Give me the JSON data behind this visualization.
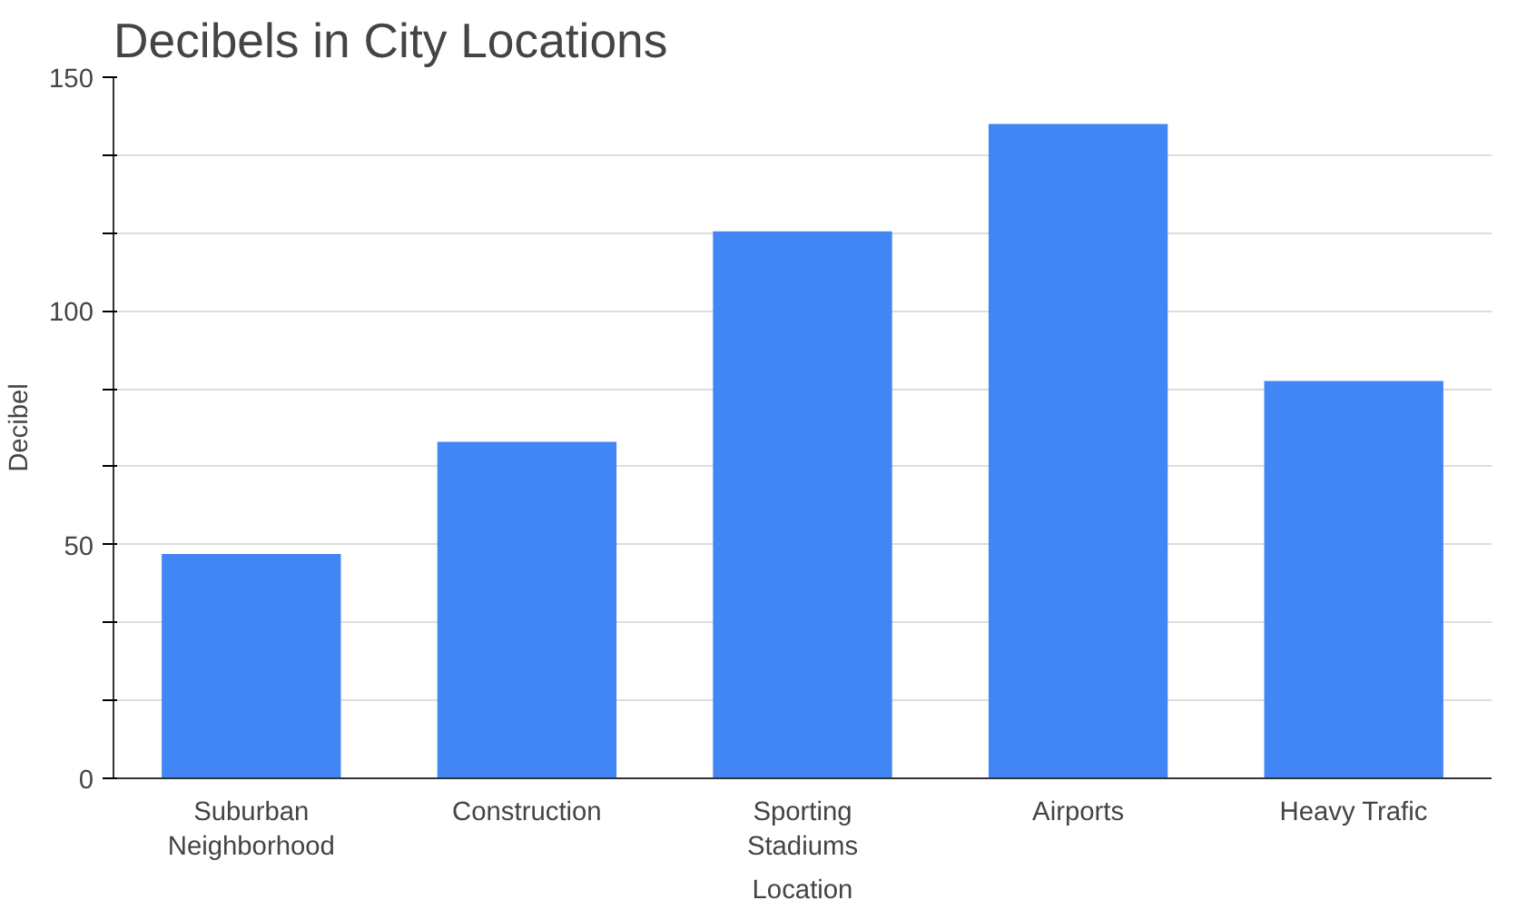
{
  "chart_data": {
    "type": "bar",
    "title": "Decibels in City Locations",
    "xlabel": "Location",
    "ylabel": "Decibel",
    "categories": [
      "Suburban\nNeighborhood",
      "Construction",
      "Sporting\nStadiums",
      "Airports",
      "Heavy Trafic"
    ],
    "values": [
      48,
      72,
      117,
      140,
      85
    ],
    "color": "#4285f4",
    "ylim": [
      0,
      150
    ],
    "yticks": [
      0,
      {
        "value": 16.67,
        "label": null
      },
      {
        "value": 33.33,
        "label": null
      },
      50,
      {
        "value": 66.67,
        "label": null
      },
      {
        "value": 83.33,
        "label": null
      },
      100,
      {
        "value": 116.67,
        "label": null
      },
      {
        "value": 133.33,
        "label": null
      },
      150
    ],
    "grid": "y"
  }
}
